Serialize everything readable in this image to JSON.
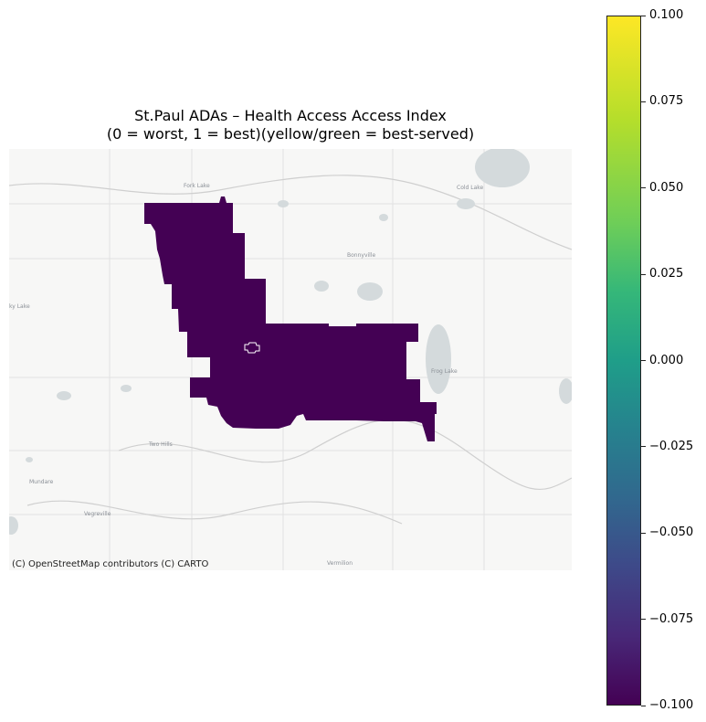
{
  "title": {
    "line1": "St.Paul ADAs – Health Access Access Index",
    "line2": "(0 = worst, 1 = best)(yellow/green = best-served)"
  },
  "map": {
    "attribution": "(C) OpenStreetMap contributors (C) CARTO",
    "region_fill": "#440154",
    "basemap_color": "#f7f7f6",
    "water_color": "#d4dadc",
    "place_labels": [
      "Cold Lake",
      "Bonnyville",
      "Frog Lake",
      "Two Hills",
      "Mundare",
      "Vegreville",
      "Vermilion"
    ]
  },
  "colorbar": {
    "colormap": "viridis",
    "min": -0.1,
    "max": 0.1,
    "tick_labels": [
      "0.100",
      "0.075",
      "0.050",
      "0.025",
      "0.000",
      "−0.025",
      "−0.050",
      "−0.075",
      "−0.100"
    ]
  }
}
